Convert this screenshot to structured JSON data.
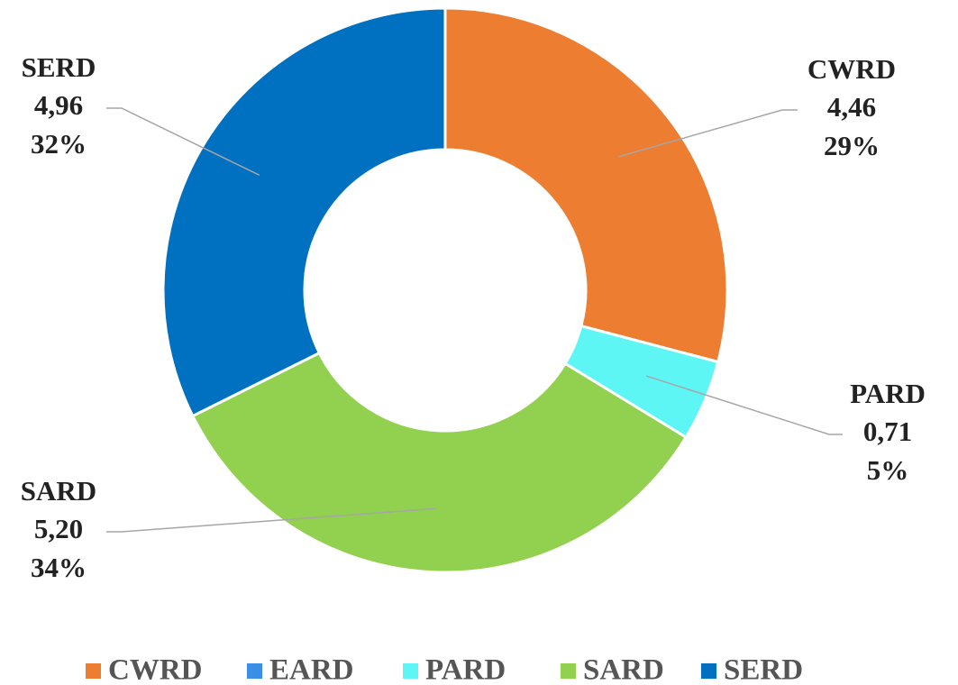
{
  "chart_data": {
    "type": "donut",
    "categories": [
      "CWRD",
      "EARD",
      "PARD",
      "SARD",
      "SERD"
    ],
    "values": [
      4.46,
      0,
      0.71,
      5.2,
      4.96
    ],
    "value_labels": [
      "4,46",
      null,
      "0,71",
      "5,20",
      "4,96"
    ],
    "percent_labels": [
      "29%",
      null,
      "5%",
      "34%",
      "32%"
    ],
    "colors": [
      "#ed7d31",
      "#3a8ee6",
      "#5ef5f5",
      "#92d050",
      "#0070c0"
    ],
    "legend": "bottom"
  }
}
